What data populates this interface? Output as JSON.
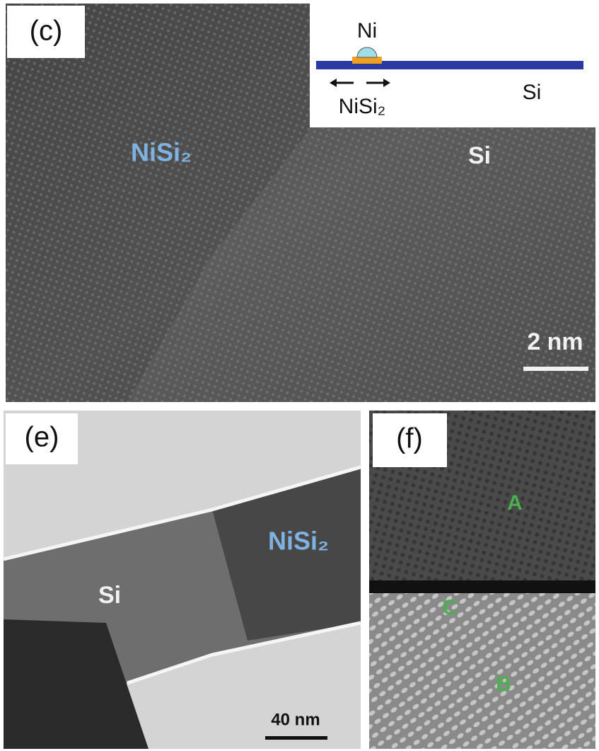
{
  "panel_c": {
    "label": "(c)",
    "inset": {
      "ni": "Ni",
      "nisi2": "NiSi₂",
      "si": "Si"
    },
    "nisi2": "NiSi₂",
    "si": "Si",
    "scale_bar": "2 nm"
  },
  "panel_e": {
    "label": "(e)",
    "nisi2": "NiSi₂",
    "si": "Si",
    "scale_bar": "40 nm"
  },
  "panel_f": {
    "label": "(f)",
    "a": "A",
    "c": "C",
    "b": "B"
  }
}
